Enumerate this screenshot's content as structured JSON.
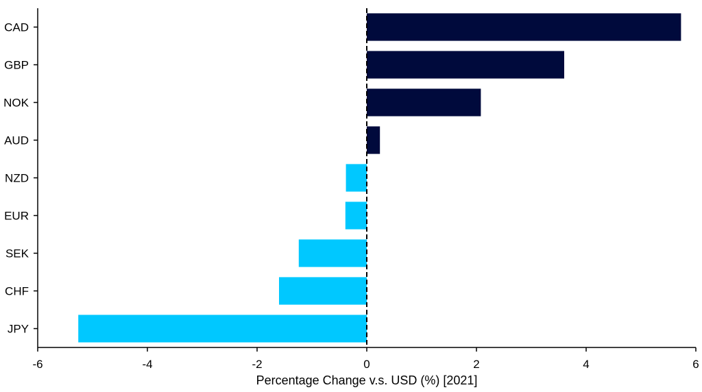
{
  "chart_data": {
    "type": "bar",
    "orientation": "horizontal",
    "categories": [
      "CAD",
      "GBP",
      "NOK",
      "AUD",
      "NZD",
      "EUR",
      "SEK",
      "CHF",
      "JPY"
    ],
    "values": [
      5.73,
      3.6,
      2.08,
      0.24,
      -0.38,
      -0.39,
      -1.24,
      -1.6,
      -5.26
    ],
    "xlabel": "Percentage Change v.s. USD (%) [2021]",
    "xlim": [
      -6,
      6
    ],
    "xticks": [
      -6,
      -4,
      -2,
      0,
      2,
      4,
      6
    ],
    "grid": false,
    "legend": "none",
    "colors": {
      "positive": "#000a3c",
      "negative": "#00c8ff",
      "zero_line": "#000000"
    }
  }
}
